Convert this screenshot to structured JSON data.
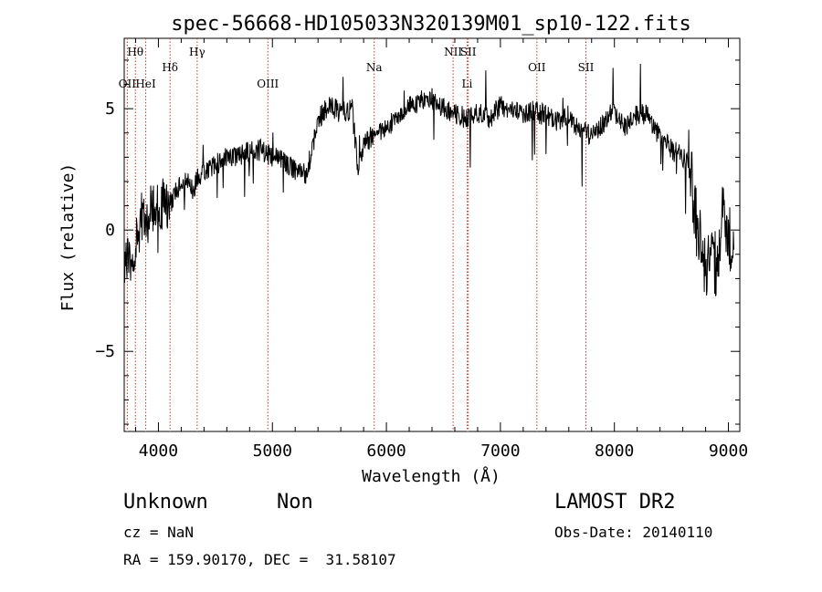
{
  "chart_data": {
    "type": "line",
    "title": "spec-56668-HD105033N320139M01_sp10-122.fits",
    "xlabel": "Wavelength (Å)",
    "ylabel": "Flux (relative)",
    "xlim": [
      3700,
      9100
    ],
    "ylim": [
      -8.3,
      7.9
    ],
    "x_ticks": [
      4000,
      5000,
      6000,
      7000,
      8000,
      9000
    ],
    "y_ticks": [
      -5,
      0,
      5
    ],
    "x_tick_labels": [
      "4000",
      "5000",
      "6000",
      "7000",
      "8000",
      "9000"
    ],
    "y_tick_labels": [
      "−5",
      "0",
      "5"
    ],
    "spectral_lines": [
      {
        "label": "Hθ",
        "x": 3798,
        "row": 0
      },
      {
        "label": "OII",
        "x": 3727,
        "row": 2
      },
      {
        "label": "HeI",
        "x": 3889,
        "row": 2
      },
      {
        "label": "Hδ",
        "x": 4102,
        "row": 1
      },
      {
        "label": "Hγ",
        "x": 4340,
        "row": 0
      },
      {
        "label": "OIII",
        "x": 4960,
        "row": 2
      },
      {
        "label": "Na",
        "x": 5893,
        "row": 1
      },
      {
        "label": "NII",
        "x": 6585,
        "row": 0
      },
      {
        "label": "SII",
        "x": 6718,
        "row": 0
      },
      {
        "label": "Li",
        "x": 6708,
        "row": 2
      },
      {
        "label": "OII",
        "x": 7320,
        "row": 1
      },
      {
        "label": "SII",
        "x": 7750,
        "row": 1
      }
    ],
    "series": [
      {
        "x": [
          3700,
          3750,
          3800,
          3850,
          3900,
          3950,
          4000,
          4050,
          4100,
          4150,
          4200,
          4250,
          4300,
          4350,
          4400,
          4450,
          4500,
          4600,
          4700,
          4800,
          4900,
          5000,
          5100,
          5200,
          5300,
          5400,
          5500,
          5600,
          5700,
          5750,
          5800,
          5900,
          6000,
          6100,
          6200,
          6300,
          6400,
          6500,
          6600,
          6700,
          6800,
          6900,
          7000,
          7100,
          7200,
          7300,
          7400,
          7500,
          7600,
          7700,
          7800,
          7900,
          8000,
          8100,
          8200,
          8300,
          8400,
          8500,
          8600,
          8650,
          8700,
          8750,
          8800,
          8850,
          8900,
          8950,
          9000,
          9050
        ],
        "y": [
          -1.0,
          -1.5,
          -0.5,
          0.5,
          0.3,
          1.0,
          0.8,
          1.2,
          1.0,
          1.6,
          1.9,
          2.0,
          1.6,
          2.2,
          2.3,
          2.5,
          2.7,
          3.0,
          3.1,
          3.2,
          3.3,
          3.0,
          2.8,
          2.5,
          2.3,
          4.5,
          5.2,
          4.8,
          5.0,
          2.5,
          3.5,
          4.0,
          4.3,
          4.6,
          5.1,
          5.3,
          5.4,
          5.0,
          4.8,
          4.6,
          4.8,
          4.6,
          5.1,
          5.0,
          4.8,
          4.9,
          4.7,
          4.5,
          4.7,
          4.1,
          3.9,
          4.4,
          4.9,
          4.2,
          4.8,
          4.7,
          3.8,
          3.3,
          3.0,
          2.8,
          1.2,
          -0.5,
          -1.8,
          -1.0,
          -1.5,
          0.5,
          -0.5,
          0.0
        ]
      }
    ]
  },
  "footer": {
    "object_type": "Unknown",
    "object_class": "Non",
    "source": "LAMOST DR2",
    "cz": "cz = NaN",
    "obs_date": "Obs-Date: 20140110",
    "coords": "RA = 159.90170, DEC =  31.58107"
  }
}
